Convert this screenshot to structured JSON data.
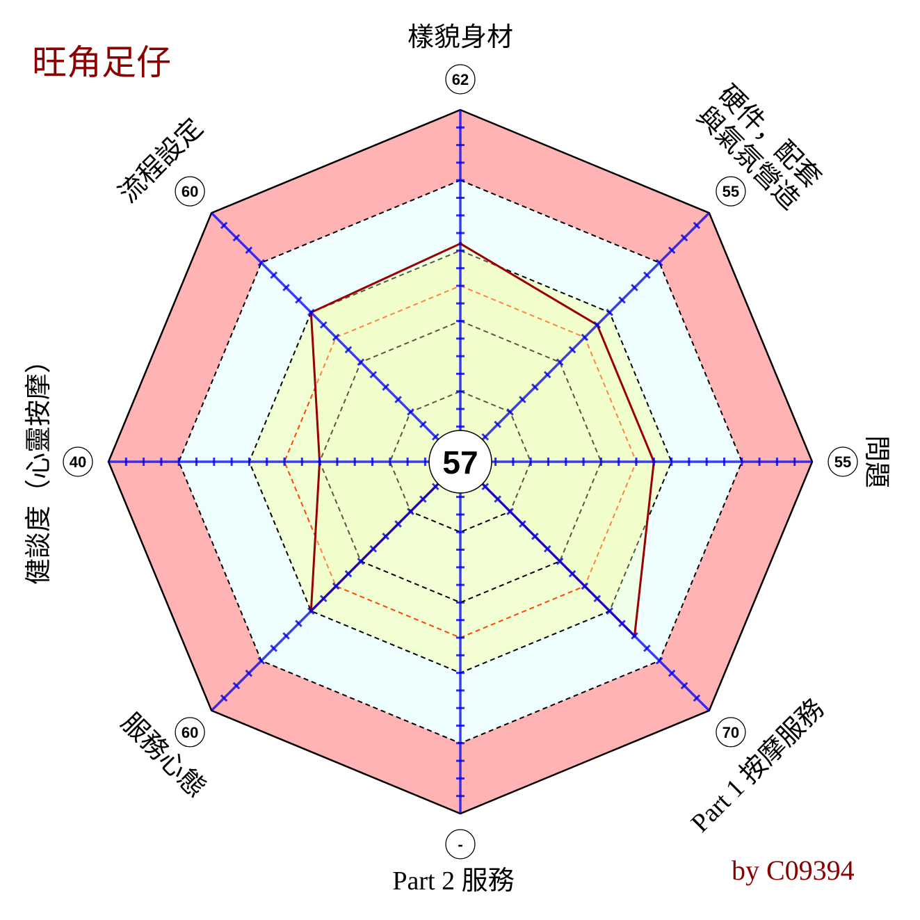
{
  "title": "旺角足仔",
  "credit": "by C09394",
  "chart_data": {
    "type": "radar",
    "title": "旺角足仔",
    "overall_score": "57",
    "range": [
      0,
      100
    ],
    "rings": [
      20,
      40,
      60,
      80,
      100
    ],
    "average_ring": 50,
    "axes": [
      {
        "label": "樣貌身材",
        "score_label": "62",
        "value": 62
      },
      {
        "label": "硬件，配套 與氣氛營造",
        "score_label": "55",
        "value": 55
      },
      {
        "label": "問題",
        "score_label": "55",
        "value": 55
      },
      {
        "label": "Part 1 按摩服務",
        "score_label": "70",
        "value": 70
      },
      {
        "label": "Part 2 服務",
        "score_label": "-",
        "value": null
      },
      {
        "label": "服務心態",
        "score_label": "60",
        "value": 60
      },
      {
        "label": "健談度（心靈按摩）",
        "score_label": "40",
        "value": 40
      },
      {
        "label": "流程設定",
        "score_label": "60",
        "value": 60
      }
    ],
    "colors": {
      "outer_band": "#ffb3b5",
      "mid_band": "#eefefe",
      "inner_band": "#f1fed3",
      "axis": "#0000ee",
      "series_line": "#990000",
      "avg_ring": "#ff4500",
      "ring_dash": "#000000"
    }
  }
}
